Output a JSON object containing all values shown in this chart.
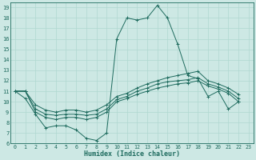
{
  "xlabel": "Humidex (Indice chaleur)",
  "bg_color": "#cde8e4",
  "grid_color": "#b0d8d0",
  "line_color": "#1e6b5e",
  "spine_color": "#1e6b5e",
  "xlim": [
    -0.5,
    23.5
  ],
  "ylim": [
    6,
    19.5
  ],
  "xticks": [
    0,
    1,
    2,
    3,
    4,
    5,
    6,
    7,
    8,
    9,
    10,
    11,
    12,
    13,
    14,
    15,
    16,
    17,
    18,
    19,
    20,
    21,
    22,
    23
  ],
  "yticks": [
    6,
    7,
    8,
    9,
    10,
    11,
    12,
    13,
    14,
    15,
    16,
    17,
    18,
    19
  ],
  "series": [
    {
      "x": [
        0,
        1,
        2,
        3,
        4,
        5,
        6,
        7,
        8,
        9,
        10,
        11,
        12,
        13,
        14,
        15,
        16,
        17,
        18,
        19,
        20,
        21,
        22
      ],
      "y": [
        11,
        10.3,
        8.8,
        7.5,
        7.7,
        7.7,
        7.3,
        6.5,
        6.3,
        7.0,
        16.0,
        18.0,
        17.8,
        18.0,
        19.2,
        18.0,
        15.5,
        12.5,
        12.2,
        10.5,
        11.0,
        9.3,
        10.0
      ]
    },
    {
      "x": [
        0,
        1,
        2,
        3,
        4,
        5,
        6,
        7,
        8,
        9,
        10,
        11,
        12,
        13,
        14,
        15,
        16,
        17,
        18,
        19,
        20,
        21,
        22
      ],
      "y": [
        11.0,
        11.0,
        9.0,
        8.5,
        8.3,
        8.5,
        8.5,
        8.3,
        8.5,
        9.0,
        10.0,
        10.3,
        10.7,
        11.0,
        11.3,
        11.5,
        11.7,
        11.8,
        12.0,
        11.5,
        11.2,
        10.8,
        10.0
      ]
    },
    {
      "x": [
        0,
        1,
        2,
        3,
        4,
        5,
        6,
        7,
        8,
        9,
        10,
        11,
        12,
        13,
        14,
        15,
        16,
        17,
        18,
        19,
        20,
        21,
        22
      ],
      "y": [
        11.0,
        11.0,
        9.3,
        8.8,
        8.7,
        8.8,
        8.8,
        8.7,
        8.8,
        9.3,
        10.2,
        10.5,
        11.0,
        11.3,
        11.7,
        11.9,
        12.0,
        12.1,
        12.3,
        11.7,
        11.4,
        11.0,
        10.3
      ]
    },
    {
      "x": [
        0,
        1,
        2,
        3,
        4,
        5,
        6,
        7,
        8,
        9,
        10,
        11,
        12,
        13,
        14,
        15,
        16,
        17,
        18,
        19,
        20,
        21,
        22
      ],
      "y": [
        11.0,
        11.0,
        9.7,
        9.2,
        9.0,
        9.2,
        9.2,
        9.0,
        9.2,
        9.7,
        10.5,
        10.8,
        11.3,
        11.7,
        12.0,
        12.3,
        12.5,
        12.7,
        12.9,
        12.0,
        11.7,
        11.3,
        10.7
      ]
    }
  ]
}
